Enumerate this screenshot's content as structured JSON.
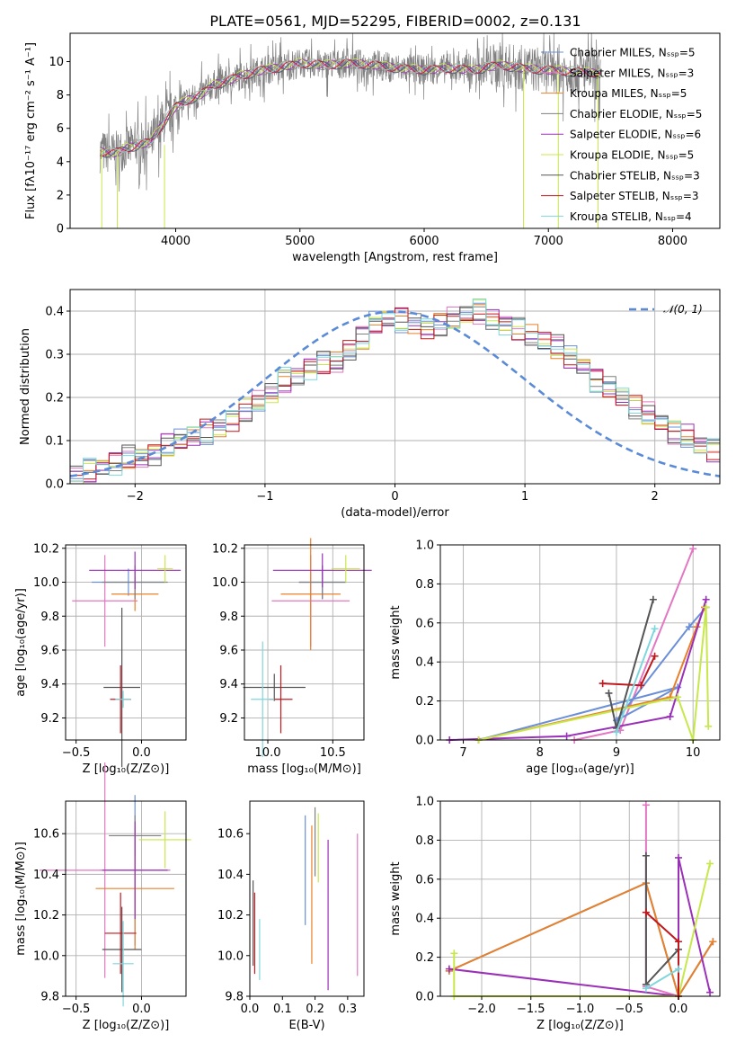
{
  "figure": {
    "title": "PLATE=0561, MJD=52295, FIBERID=0002, z=0.131"
  },
  "colors": {
    "chabrier_miles": "#6a8fd8",
    "salpeter_miles": "#e377c2",
    "kroupa_miles": "#e8802a",
    "chabrier_elodie": "#7f7f7f",
    "salpeter_elodie": "#9b30b8",
    "kroupa_elodie": "#c7e84a",
    "chabrier_stelib": "#555555",
    "salpeter_stelib": "#c0181f",
    "kroupa_stelib": "#7fd6dd",
    "grid": "#b0b0b0"
  },
  "chart_data": [
    {
      "type": "line",
      "title": "PLATE=0561, MJD=52295, FIBERID=0002, z=0.131",
      "xlabel": "wavelength [Angstrom, rest frame]",
      "ylabel": "Flux [fλ10⁻¹⁷ erg cm⁻² s⁻¹ A⁻¹]",
      "xlim": [
        3150,
        8380
      ],
      "ylim": [
        0,
        11.7
      ],
      "xticks": [
        "4000",
        "5000",
        "6000",
        "7000",
        "8000"
      ],
      "yticks": [
        "0",
        "2",
        "4",
        "6",
        "8",
        "10"
      ],
      "grid": false,
      "legend_position": "top-right",
      "legend": [
        "Chabrier MILES, Nₛₛₚ=5",
        "Salpeter MILES, Nₛₛₚ=3",
        "Kroupa MILES, Nₛₛₚ=5",
        "Chabrier ELODIE, Nₛₛₚ=5",
        "Salpeter ELODIE, Nₛₛₚ=6",
        "Kroupa ELODIE, Nₛₛₚ=5",
        "Chabrier STELIB, Nₛₛₚ=3",
        "Salpeter STELIB, Nₛₛₚ=3",
        "Kroupa STELIB, Nₛₛₚ=4"
      ],
      "x": [
        3400,
        3500,
        3600,
        3700,
        3800,
        3900,
        4000,
        4100,
        4200,
        4300,
        4400,
        4500,
        4600,
        4700,
        4800,
        5000,
        5200,
        5400,
        5600,
        5800,
        6000,
        6200,
        6400,
        6600,
        6800,
        7000,
        7200,
        7400
      ],
      "series": [
        {
          "name": "Chabrier MILES, Nₛₛₚ=5",
          "values": [
            4.6,
            4.5,
            4.8,
            5.0,
            5.2,
            6.3,
            7.3,
            7.7,
            8.0,
            8.6,
            8.8,
            9.1,
            9.3,
            9.5,
            9.6,
            9.9,
            9.8,
            9.9,
            9.8,
            9.6,
            9.5,
            9.6,
            9.5,
            9.8,
            9.6,
            9.5,
            9.4,
            9.3
          ]
        },
        {
          "name": "Kroupa STELIB, Nₛₛₚ=4",
          "values": [
            4.4,
            4.3,
            4.6,
            4.9,
            5.0,
            6.1,
            7.2,
            7.6,
            7.9,
            8.5,
            8.7,
            9.0,
            9.2,
            9.4,
            9.5,
            9.8,
            9.7,
            9.8,
            9.7,
            9.5,
            9.4,
            9.5,
            9.4,
            9.7,
            9.5,
            9.4,
            9.3,
            9.2
          ]
        }
      ]
    },
    {
      "type": "bar",
      "xlabel": "(data-model)/error",
      "ylabel": "Normed distribution",
      "xlim": [
        -2.5,
        2.5
      ],
      "ylim": [
        0,
        0.45
      ],
      "xticks": [
        "−2",
        "−1",
        "0",
        "1",
        "2"
      ],
      "yticks": [
        "0.0",
        "0.1",
        "0.2",
        "0.3",
        "0.4"
      ],
      "grid": true,
      "legend_position": "top-right",
      "legend": [
        "𝒩(0, 1)"
      ],
      "bin_width": 0.1,
      "bin_start": -2.5,
      "values": [
        0.02,
        0.03,
        0.04,
        0.05,
        0.06,
        0.06,
        0.07,
        0.09,
        0.1,
        0.11,
        0.12,
        0.13,
        0.15,
        0.17,
        0.19,
        0.21,
        0.24,
        0.25,
        0.27,
        0.28,
        0.28,
        0.31,
        0.34,
        0.37,
        0.38,
        0.38,
        0.37,
        0.36,
        0.37,
        0.38,
        0.39,
        0.4,
        0.38,
        0.37,
        0.36,
        0.34,
        0.33,
        0.32,
        0.29,
        0.27,
        0.24,
        0.22,
        0.2,
        0.18,
        0.16,
        0.14,
        0.12,
        0.11,
        0.09,
        0.08,
        0.07
      ]
    },
    {
      "type": "scatter",
      "xlabel": "Z [log₁₀(Z/Z⊙)]",
      "ylabel": "age  [log₁₀(age/yr)]",
      "xlim": [
        -0.58,
        0.34
      ],
      "ylim": [
        9.07,
        10.22
      ],
      "xticks": [
        "−0.5",
        "0.0"
      ],
      "yticks": [
        "9.2",
        "9.4",
        "9.6",
        "9.8",
        "10.0",
        "10.2"
      ],
      "grid": true,
      "points": [
        {
          "series": "Chabrier MILES",
          "x": -0.1,
          "y": 10.0,
          "xerr": 0.28,
          "yerr": 0.08
        },
        {
          "series": "Salpeter MILES",
          "x": -0.28,
          "y": 9.89,
          "xerr": 0.25,
          "yerr": 0.27
        },
        {
          "series": "Kroupa MILES",
          "x": -0.05,
          "y": 9.93,
          "xerr": 0.18,
          "yerr": 0.1
        },
        {
          "series": "Chabrier ELODIE",
          "x": -0.05,
          "y": 10.0,
          "xerr": 0.25,
          "yerr": 0.1
        },
        {
          "series": "Salpeter ELODIE",
          "x": -0.05,
          "y": 10.07,
          "xerr": 0.35,
          "yerr": 0.11
        },
        {
          "series": "Kroupa ELODIE",
          "x": 0.18,
          "y": 10.08,
          "xerr": 0.06,
          "yerr": 0.08
        },
        {
          "series": "Chabrier STELIB",
          "x": -0.15,
          "y": 9.38,
          "xerr": 0.14,
          "yerr": 0.47
        },
        {
          "series": "Salpeter STELIB",
          "x": -0.16,
          "y": 9.31,
          "xerr": 0.08,
          "yerr": 0.2
        },
        {
          "series": "Kroupa STELIB",
          "x": -0.14,
          "y": 9.31,
          "xerr": 0.06,
          "yerr": 0.05
        }
      ]
    },
    {
      "type": "scatter",
      "xlabel": "mass [log₁₀(M/M⊙)]",
      "ylabel": "",
      "xlim": [
        9.82,
        10.74
      ],
      "ylim": [
        9.07,
        10.22
      ],
      "xticks": [
        "10.0",
        "10.5"
      ],
      "yticks": [
        "9.2",
        "9.4",
        "9.6",
        "9.8",
        "10.0",
        "10.2"
      ],
      "grid": true,
      "points": [
        {
          "series": "Chabrier MILES",
          "x": 10.42,
          "y": 10.0,
          "xerr": 0.18,
          "yerr": 0.1
        },
        {
          "series": "Salpeter MILES",
          "x": 10.33,
          "y": 9.89,
          "xerr": 0.3,
          "yerr": 0.27
        },
        {
          "series": "Kroupa MILES",
          "x": 10.33,
          "y": 9.93,
          "xerr": 0.23,
          "yerr": 0.33
        },
        {
          "series": "Chabrier ELODIE",
          "x": 10.42,
          "y": 10.0,
          "xerr": 0.18,
          "yerr": 0.1
        },
        {
          "series": "Salpeter ELODIE",
          "x": 10.42,
          "y": 10.07,
          "xerr": 0.38,
          "yerr": 0.1
        },
        {
          "series": "Kroupa ELODIE",
          "x": 10.6,
          "y": 10.08,
          "xerr": 0.11,
          "yerr": 0.08
        },
        {
          "series": "Chabrier STELIB",
          "x": 10.05,
          "y": 9.38,
          "xerr": 0.24,
          "yerr": 0.08
        },
        {
          "series": "Salpeter STELIB",
          "x": 10.1,
          "y": 9.31,
          "xerr": 0.09,
          "yerr": 0.2
        },
        {
          "series": "Kroupa STELIB",
          "x": 9.96,
          "y": 9.31,
          "xerr": 0.09,
          "yerr": 0.34
        }
      ]
    },
    {
      "type": "line",
      "xlabel": "age  [log₁₀(age/yr)]",
      "ylabel": "mass weight",
      "xlim": [
        6.7,
        10.35
      ],
      "ylim": [
        0,
        1
      ],
      "xticks": [
        "7",
        "8",
        "9",
        "10"
      ],
      "yticks": [
        "0.0",
        "0.2",
        "0.4",
        "0.6",
        "0.8",
        "1.0"
      ],
      "grid": true,
      "series": [
        {
          "name": "Salpeter MILES",
          "x": [
            8.45,
            9.05,
            10.0
          ],
          "y": [
            0.0,
            0.05,
            0.98
          ]
        },
        {
          "name": "Chabrier MILES",
          "x": [
            7.2,
            9.8,
            9.0,
            9.95,
            10.17
          ],
          "y": [
            0.0,
            0.27,
            0.1,
            0.58,
            0.68
          ]
        },
        {
          "name": "Kroupa MILES",
          "x": [
            7.2,
            9.7,
            10.05,
            10.15
          ],
          "y": [
            0.0,
            0.22,
            0.58,
            0.68
          ]
        },
        {
          "name": "Salpeter ELODIE",
          "x": [
            6.82,
            8.35,
            9.7,
            10.17
          ],
          "y": [
            0.0,
            0.02,
            0.12,
            0.72
          ]
        },
        {
          "name": "Kroupa ELODIE",
          "x": [
            7.2,
            9.8,
            10.0,
            10.17,
            10.2
          ],
          "y": [
            0.0,
            0.22,
            0.0,
            0.68,
            0.07
          ]
        },
        {
          "name": "Chabrier STELIB",
          "x": [
            8.9,
            9.0,
            9.48
          ],
          "y": [
            0.24,
            0.06,
            0.72
          ]
        },
        {
          "name": "Salpeter STELIB",
          "x": [
            8.82,
            9.32,
            9.5
          ],
          "y": [
            0.29,
            0.28,
            0.43
          ]
        },
        {
          "name": "Kroupa STELIB",
          "x": [
            9.0,
            9.5
          ],
          "y": [
            0.04,
            0.57
          ]
        }
      ]
    },
    {
      "type": "scatter",
      "xlabel": "Z [log₁₀(Z/Z⊙)]",
      "ylabel": "mass [log₁₀(M/M⊙)]",
      "xlim": [
        -0.58,
        0.34
      ],
      "ylim": [
        9.8,
        10.76
      ],
      "xticks": [
        "−0.5",
        "0.0"
      ],
      "yticks": [
        "9.8",
        "10.0",
        "10.2",
        "10.4",
        "10.6"
      ],
      "grid": true,
      "points": [
        {
          "series": "Chabrier MILES",
          "x": -0.05,
          "y": 10.42,
          "xerr": 0.27,
          "yerr": 0.37
        },
        {
          "series": "Salpeter MILES",
          "x": -0.28,
          "y": 10.42,
          "xerr": 0.5,
          "yerr": 0.53
        },
        {
          "series": "Kroupa MILES",
          "x": -0.05,
          "y": 10.33,
          "xerr": 0.3,
          "yerr": 0.3
        },
        {
          "series": "Chabrier ELODIE",
          "x": -0.05,
          "y": 10.59,
          "xerr": 0.2,
          "yerr": 0.1
        },
        {
          "series": "Salpeter ELODIE",
          "x": -0.05,
          "y": 10.42,
          "xerr": 0.25,
          "yerr": 0.24
        },
        {
          "series": "Kroupa ELODIE",
          "x": 0.18,
          "y": 10.57,
          "xerr": 0.2,
          "yerr": 0.14
        },
        {
          "series": "Chabrier STELIB",
          "x": -0.15,
          "y": 10.03,
          "xerr": 0.15,
          "yerr": 0.21
        },
        {
          "series": "Salpeter STELIB",
          "x": -0.16,
          "y": 10.11,
          "xerr": 0.12,
          "yerr": 0.2
        },
        {
          "series": "Kroupa STELIB",
          "x": -0.14,
          "y": 9.96,
          "xerr": 0.08,
          "yerr": 0.21
        }
      ]
    },
    {
      "type": "scatter",
      "xlabel": "E(B-V)",
      "ylabel": "",
      "xlim": [
        0.0,
        0.35
      ],
      "ylim": [
        9.8,
        10.76
      ],
      "xticks": [
        "0.0",
        "0.1",
        "0.2",
        "0.3"
      ],
      "yticks": [
        "9.8",
        "10.0",
        "10.2",
        "10.4",
        "10.6"
      ],
      "grid": false,
      "points": [
        {
          "series": "Chabrier MILES",
          "x": 0.17,
          "y": 10.42,
          "yerr": 0.27
        },
        {
          "series": "Salpeter MILES",
          "x": 0.33,
          "y": 10.25,
          "yerr": 0.35
        },
        {
          "series": "Kroupa MILES",
          "x": 0.19,
          "y": 10.3,
          "yerr": 0.34
        },
        {
          "series": "Chabrier ELODIE",
          "x": 0.2,
          "y": 10.56,
          "yerr": 0.17
        },
        {
          "series": "Salpeter ELODIE",
          "x": 0.24,
          "y": 10.2,
          "yerr": 0.37
        },
        {
          "series": "Kroupa ELODIE",
          "x": 0.21,
          "y": 10.53,
          "yerr": 0.17
        },
        {
          "series": "Chabrier STELIB",
          "x": 0.01,
          "y": 10.16,
          "yerr": 0.21
        },
        {
          "series": "Salpeter STELIB",
          "x": 0.015,
          "y": 10.11,
          "yerr": 0.2
        },
        {
          "series": "Kroupa STELIB",
          "x": 0.03,
          "y": 10.03,
          "yerr": 0.15
        }
      ]
    },
    {
      "type": "line",
      "xlabel": "Z [log₁₀(Z/Z⊙)]",
      "ylabel": "mass weight",
      "xlim": [
        -2.42,
        0.42
      ],
      "ylim": [
        0,
        1
      ],
      "xticks": [
        "−2.0",
        "−1.5",
        "−1.0",
        "−0.5",
        "0.0"
      ],
      "yticks": [
        "0.0",
        "0.2",
        "0.4",
        "0.6",
        "0.8",
        "1.0"
      ],
      "grid": true,
      "series": [
        {
          "name": "Salpeter MILES",
          "x": [
            -0.33,
            -0.33,
            0.0
          ],
          "y": [
            0.98,
            0.05,
            0.0
          ]
        },
        {
          "name": "Chabrier MILES",
          "x": [
            -2.33,
            -0.33,
            0.0,
            0.35
          ],
          "y": [
            0.13,
            0.58,
            0.0,
            0.28
          ]
        },
        {
          "name": "Kroupa MILES",
          "x": [
            -2.33,
            -0.33,
            0.0,
            0.35
          ],
          "y": [
            0.13,
            0.58,
            0.0,
            0.28
          ]
        },
        {
          "name": "Salpeter ELODIE",
          "x": [
            -2.33,
            0.0,
            0.0,
            0.32
          ],
          "y": [
            0.14,
            0.0,
            0.71,
            0.02
          ]
        },
        {
          "name": "Kroupa ELODIE",
          "x": [
            -2.28,
            -2.28,
            0.0,
            0.32
          ],
          "y": [
            0.22,
            0.0,
            0.0,
            0.68
          ]
        },
        {
          "name": "Chabrier STELIB",
          "x": [
            -0.33,
            -0.33,
            0.0
          ],
          "y": [
            0.72,
            0.06,
            0.24
          ]
        },
        {
          "name": "Salpeter STELIB",
          "x": [
            -0.33,
            0.0,
            0.0
          ],
          "y": [
            0.43,
            0.28,
            0.0
          ]
        },
        {
          "name": "Kroupa STELIB",
          "x": [
            -0.33,
            0.0
          ],
          "y": [
            0.04,
            0.14
          ]
        }
      ]
    }
  ]
}
